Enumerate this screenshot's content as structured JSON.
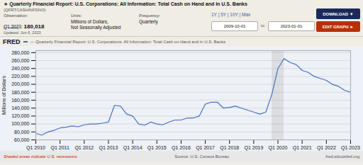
{
  "chart_data": {
    "type": "line",
    "title": "★ Quarterly Financial Report: U.S. Corporations: All Information: Total Cash on Hand and in U.S. Banks",
    "subtitle": "(QFRTCASHINFSNO)",
    "ylabel": "Millions of Dollars",
    "annotations": [
      "Observation:",
      "Q1 2023: ",
      "180,018",
      "(+ more)",
      "Updated: Jun 6, 2023",
      "Units:",
      "Millions of Dollars,",
      "Not Seasonally Adjusted",
      "Frequency:",
      "Quarterly",
      "1Y | 5Y | 10Y | Max",
      "2009-10-01",
      "to",
      "2023-01-01",
      "DOWNLOAD ▼",
      "EDIT GRAPH ►",
      "FRED",
      "Shaded areas indicate U.S. recessions.",
      "Source: U.S. Census Bureau",
      "fred.stlouisfed.org"
    ],
    "x": [
      0,
      1,
      2,
      3,
      4,
      5,
      6,
      7,
      8,
      9,
      10,
      11,
      12,
      13,
      14,
      15,
      16,
      17,
      18,
      19,
      20,
      21,
      22,
      23,
      24,
      25,
      26,
      27,
      28,
      29,
      30,
      31,
      32,
      33,
      34,
      35,
      36,
      37,
      38,
      39,
      40,
      41,
      42,
      43,
      44,
      45,
      46,
      47,
      48,
      49,
      50,
      51,
      52
    ],
    "series": [
      {
        "name": "— Quarterly Financial Report: U.S. Corporations: All Information: Total Cash on Hand and in U.S. Banks",
        "color": "#4472c4",
        "values": [
          76000,
          72000,
          80000,
          84000,
          90000,
          92000,
          95000,
          93000,
          98000,
          100000,
          100000,
          102000,
          105000,
          147000,
          145000,
          125000,
          120000,
          100000,
          97000,
          105000,
          100000,
          98000,
          105000,
          110000,
          110000,
          115000,
          115000,
          120000,
          150000,
          155000,
          155000,
          140000,
          142000,
          145000,
          140000,
          135000,
          130000,
          125000,
          130000,
          175000,
          240000,
          265000,
          255000,
          250000,
          235000,
          230000,
          220000,
          215000,
          210000,
          200000,
          195000,
          185000,
          180000
        ]
      }
    ],
    "recession_x": [
      39,
      41
    ],
    "xlim": [
      0,
      52
    ],
    "xticks": [
      {
        "value": 0,
        "label": "Q1 2010"
      },
      {
        "value": 4,
        "label": "Q1 2011"
      },
      {
        "value": 8,
        "label": "Q1 2012"
      },
      {
        "value": 12,
        "label": "Q1 2013"
      },
      {
        "value": 16,
        "label": "Q1 2014"
      },
      {
        "value": 20,
        "label": "Q1 2015"
      },
      {
        "value": 24,
        "label": "Q1 2016"
      },
      {
        "value": 28,
        "label": "Q1 2017"
      },
      {
        "value": 32,
        "label": "Q1 2018"
      },
      {
        "value": 36,
        "label": "Q1 2019"
      },
      {
        "value": 40,
        "label": "Q1 2020"
      },
      {
        "value": 44,
        "label": "Q1 2021"
      },
      {
        "value": 48,
        "label": "Q1 2022"
      },
      {
        "value": 52,
        "label": "Q1 2023"
      }
    ],
    "ylim": [
      60000,
      285000
    ],
    "yticks": [
      {
        "value": 60000,
        "label": "60,000"
      },
      {
        "value": 80000,
        "label": "80,000"
      },
      {
        "value": 100000,
        "label": "100,000"
      },
      {
        "value": 120000,
        "label": "120,000"
      },
      {
        "value": 140000,
        "label": "140,000"
      },
      {
        "value": 160000,
        "label": "160,000"
      },
      {
        "value": 180000,
        "label": "180,000"
      },
      {
        "value": 200000,
        "label": "200,000"
      },
      {
        "value": 220000,
        "label": "220,000"
      },
      {
        "value": 240000,
        "label": "240,000"
      },
      {
        "value": 260000,
        "label": "260,000"
      },
      {
        "value": 280000,
        "label": "280,000"
      }
    ],
    "grid": true
  }
}
